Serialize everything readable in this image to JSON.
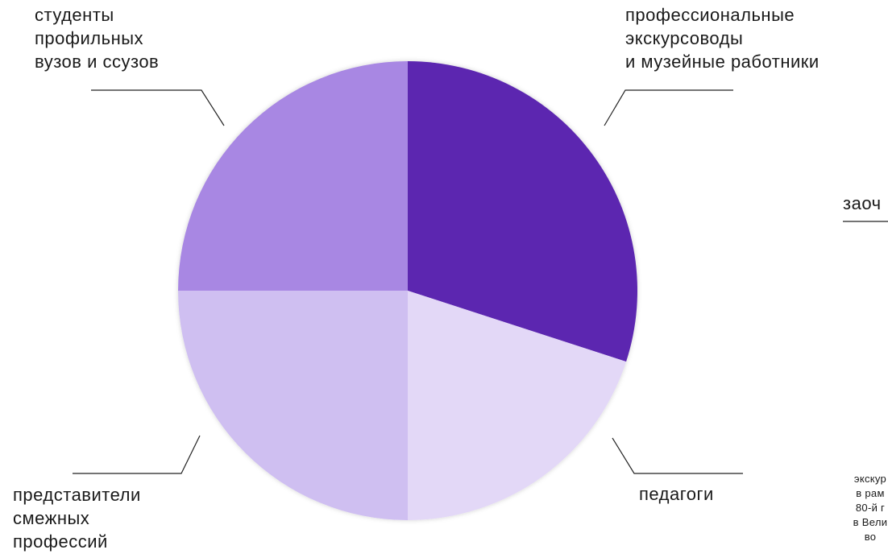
{
  "chart_data": {
    "type": "pie",
    "categories": [
      "профессиональные экскурсоводы и музейные работники",
      "педагоги",
      "представители смежных профессий",
      "студенты профильных вузов и ссузов"
    ],
    "values": [
      30,
      20,
      25,
      25
    ],
    "colors": [
      "#5b26b0",
      "#e3d8f7",
      "#cfbff1",
      "#a887e3"
    ],
    "labels": {
      "guides": "профессиональные\nэкскурсоводы\nи музейные работники",
      "teachers": "педагоги",
      "related": "представители\nсмежных\nпрофессий",
      "students": "студенты\nпрофильных\nвузов и ссузов"
    }
  },
  "side": {
    "cut_label": "заоч",
    "cut_note": "экскур\nв рам\n80-й г\nв Вели\nво"
  }
}
